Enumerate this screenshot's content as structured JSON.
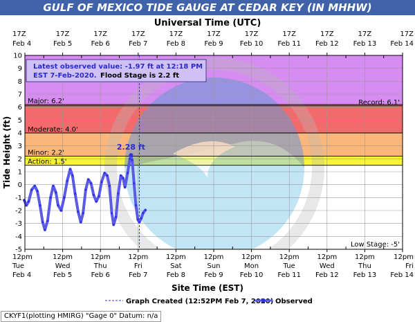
{
  "title": "GULF OF MEXICO TIDE GAUGE AT CEDAR KEY (IN MHHW)",
  "top_axis_label": "Universal Time (UTC)",
  "colors": {
    "title_bg": "#3f62a8",
    "record_band": "#d68cf0",
    "major_band": "#f26b6b",
    "moderate_band": "#fbb77a",
    "minor_band": "#fbf23c",
    "observed_line": "#5a5ae6",
    "marker": "#3030e6"
  },
  "annotation": {
    "line1": "Latest observed value: -1.97 ft at 12:18 PM",
    "line2_a": "EST 7-Feb-2020.",
    "line2_b": "Flood Stage is 2.2 ft"
  },
  "peak_label": "2.28 ft",
  "credit": "CKYF1(plotting HMIRG) \"Gage 0\" Datum: n/a",
  "chart_data": {
    "type": "line",
    "ylabel": "Tide Height (ft)",
    "xlabel": "Site Time (EST)",
    "ylim": [
      -5,
      10
    ],
    "yticks": [
      10,
      9,
      8,
      7,
      6,
      5,
      4,
      3,
      2,
      1,
      0,
      -1,
      -2,
      -3,
      -4,
      -5
    ],
    "grid": true,
    "x_ticks": [
      {
        "top_time": "17Z",
        "top_date": "Feb 4",
        "bottom_time": "12pm",
        "bottom_day": "Tue",
        "bottom_date": "Feb 4"
      },
      {
        "top_time": "17Z",
        "top_date": "Feb 5",
        "bottom_time": "12pm",
        "bottom_day": "Wed",
        "bottom_date": "Feb 5"
      },
      {
        "top_time": "17Z",
        "top_date": "Feb 6",
        "bottom_time": "12pm",
        "bottom_day": "Thu",
        "bottom_date": "Feb 6"
      },
      {
        "top_time": "17Z",
        "top_date": "Feb 7",
        "bottom_time": "12pm",
        "bottom_day": "Fri",
        "bottom_date": "Feb 7"
      },
      {
        "top_time": "17Z",
        "top_date": "Feb 8",
        "bottom_time": "12pm",
        "bottom_day": "Sat",
        "bottom_date": "Feb 8"
      },
      {
        "top_time": "17Z",
        "top_date": "Feb 9",
        "bottom_time": "12pm",
        "bottom_day": "Sun",
        "bottom_date": "Feb 9"
      },
      {
        "top_time": "17Z",
        "top_date": "Feb 10",
        "bottom_time": "12pm",
        "bottom_day": "Mon",
        "bottom_date": "Feb 10"
      },
      {
        "top_time": "17Z",
        "top_date": "Feb 11",
        "bottom_time": "12pm",
        "bottom_day": "Tue",
        "bottom_date": "Feb 11"
      },
      {
        "top_time": "17Z",
        "top_date": "Feb 12",
        "bottom_time": "12pm",
        "bottom_day": "Wed",
        "bottom_date": "Feb 12"
      },
      {
        "top_time": "17Z",
        "top_date": "Feb 13",
        "bottom_time": "12pm",
        "bottom_day": "Thu",
        "bottom_date": "Feb 13"
      },
      {
        "top_time": "17Z",
        "top_date": "Feb 14",
        "bottom_time": "12pm",
        "bottom_day": "Fri",
        "bottom_date": "Feb 14"
      }
    ],
    "flood_categories": [
      {
        "name": "Record",
        "label": "Record: 6.1'",
        "value": 6.1,
        "label_side": "right"
      },
      {
        "name": "Major",
        "label": "Major: 6.2'",
        "value": 6.2,
        "label_side": "left"
      },
      {
        "name": "Moderate",
        "label": "Moderate: 4.0'",
        "value": 4.0,
        "label_side": "left"
      },
      {
        "name": "Minor",
        "label": "Minor: 2.2'",
        "value": 2.2,
        "label_side": "left"
      },
      {
        "name": "Action",
        "label": "Action: 1.5'",
        "value": 1.5,
        "label_side": "left"
      },
      {
        "name": "Low Stage",
        "label": "Low Stage: -5'",
        "value": -5,
        "label_side": "right"
      }
    ],
    "graph_created": {
      "label": "Graph Created (12:52PM Feb 7, 2020)",
      "day_offset": 3.03
    },
    "series": [
      {
        "name": "Observed",
        "points": [
          [
            -0.02,
            -1.2
          ],
          [
            0.04,
            -1.6
          ],
          [
            0.1,
            -1.3
          ],
          [
            0.18,
            -0.4
          ],
          [
            0.26,
            -0.1
          ],
          [
            0.33,
            -0.5
          ],
          [
            0.4,
            -1.6
          ],
          [
            0.47,
            -2.9
          ],
          [
            0.53,
            -3.5
          ],
          [
            0.6,
            -2.8
          ],
          [
            0.68,
            -1.0
          ],
          [
            0.75,
            -0.1
          ],
          [
            0.82,
            -0.6
          ],
          [
            0.88,
            -1.6
          ],
          [
            0.96,
            -2.0
          ],
          [
            1.04,
            -1.0
          ],
          [
            1.12,
            0.3
          ],
          [
            1.2,
            1.2
          ],
          [
            1.26,
            0.7
          ],
          [
            1.33,
            -0.7
          ],
          [
            1.41,
            -2.1
          ],
          [
            1.48,
            -2.9
          ],
          [
            1.54,
            -2.2
          ],
          [
            1.61,
            -0.4
          ],
          [
            1.68,
            0.4
          ],
          [
            1.75,
            0.1
          ],
          [
            1.82,
            -0.8
          ],
          [
            1.89,
            -1.3
          ],
          [
            1.96,
            -0.9
          ],
          [
            2.03,
            0.2
          ],
          [
            2.11,
            0.9
          ],
          [
            2.18,
            0.7
          ],
          [
            2.24,
            -0.1
          ],
          [
            2.3,
            -2.2
          ],
          [
            2.35,
            -3.1
          ],
          [
            2.41,
            -2.5
          ],
          [
            2.47,
            -0.7
          ],
          [
            2.54,
            0.7
          ],
          [
            2.6,
            0.5
          ],
          [
            2.65,
            -0.2
          ],
          [
            2.72,
            0.9
          ],
          [
            2.78,
            2.0
          ],
          [
            2.81,
            2.28
          ],
          [
            2.84,
            1.9
          ],
          [
            2.89,
            0.1
          ],
          [
            2.94,
            -1.6
          ],
          [
            2.99,
            -2.7
          ],
          [
            3.03,
            -2.9
          ],
          [
            3.08,
            -2.6
          ],
          [
            3.13,
            -2.2
          ],
          [
            3.19,
            -1.97
          ]
        ]
      }
    ],
    "peak": {
      "x": 2.81,
      "y": 2.28
    },
    "latest": {
      "value": -1.97
    }
  }
}
